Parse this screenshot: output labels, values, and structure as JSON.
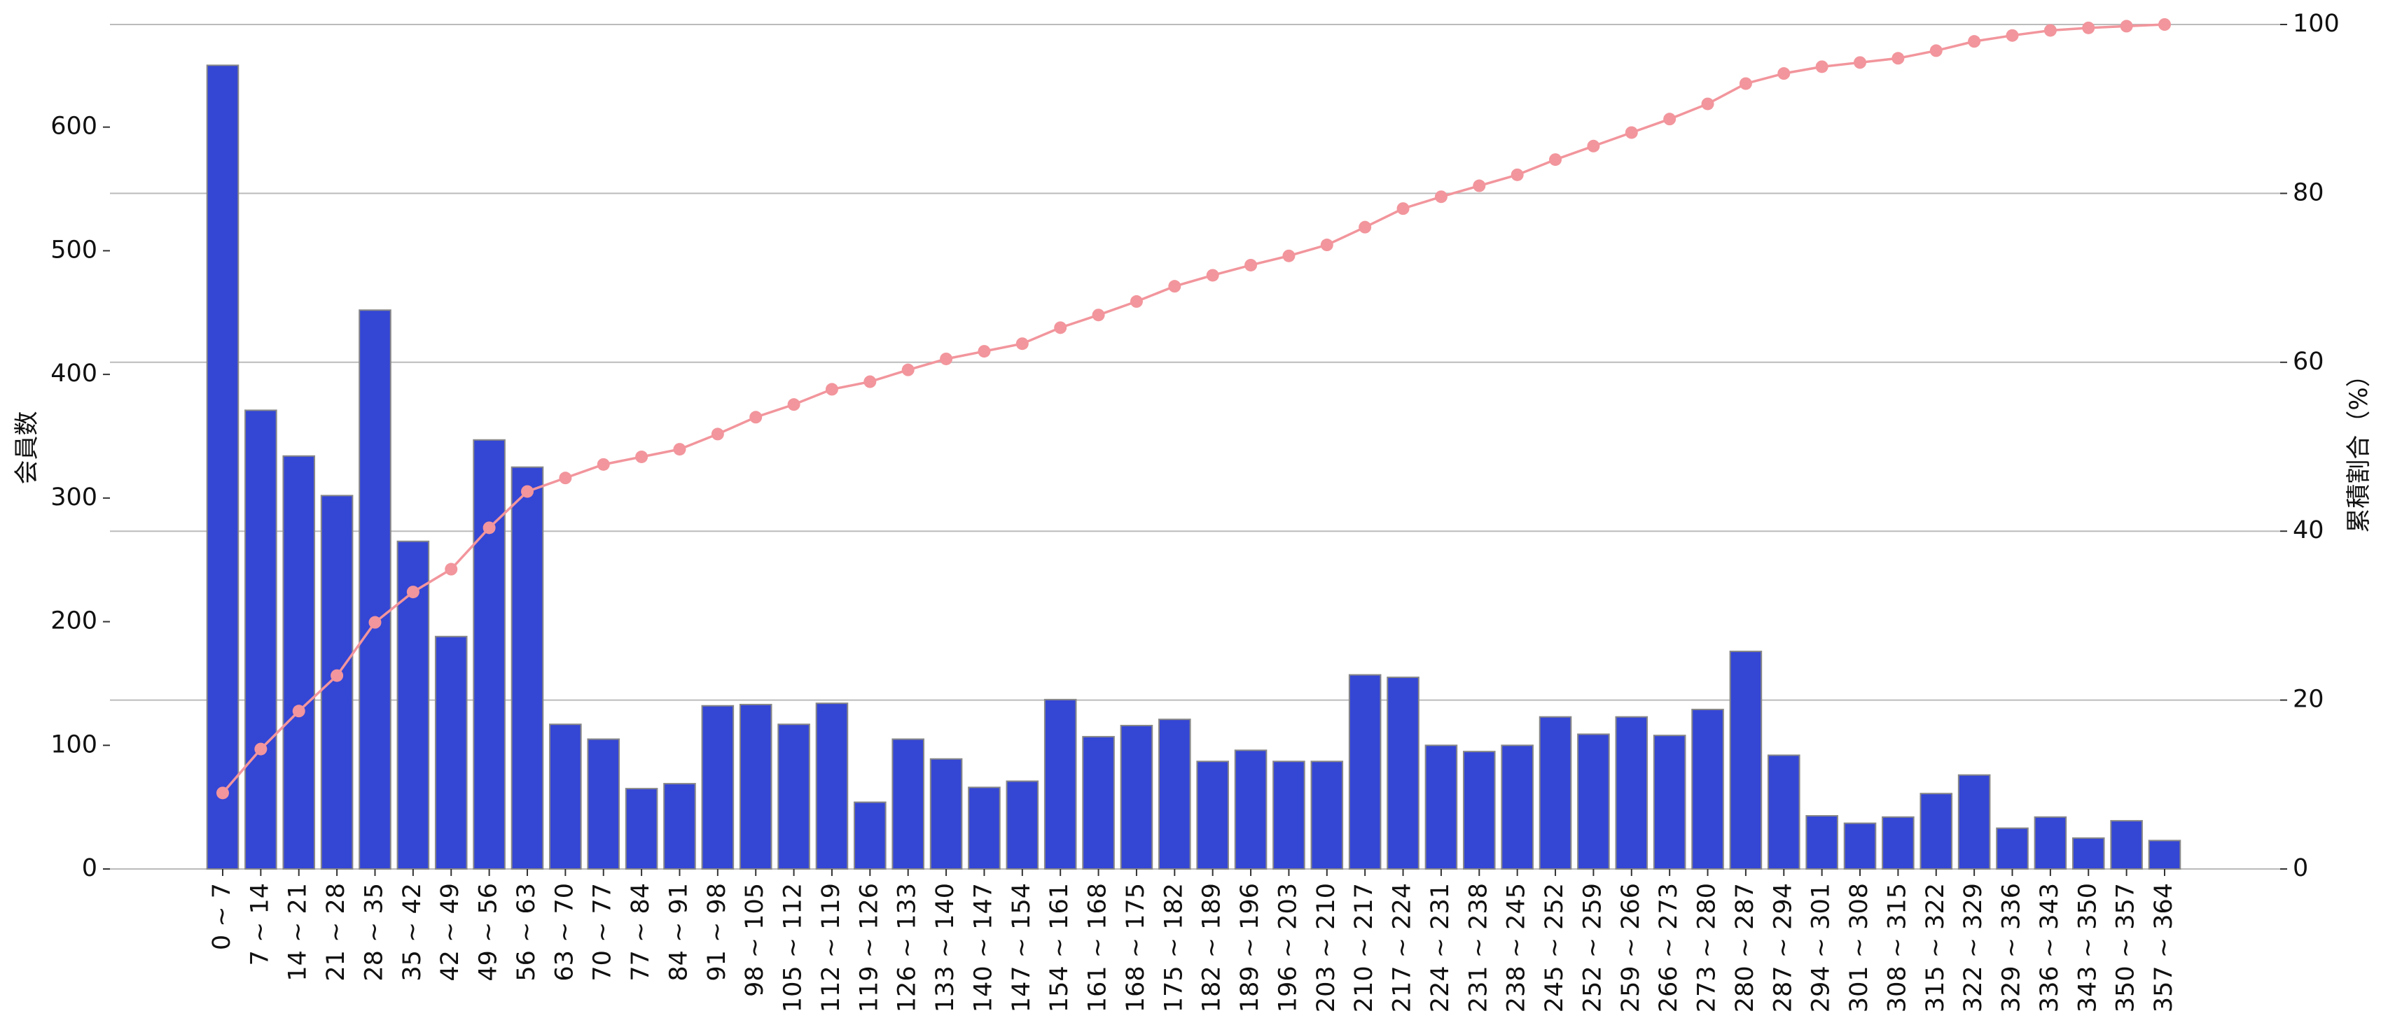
{
  "chart_data": {
    "type": "bar",
    "ylabel": "会員数",
    "y2label": "累積割合（%）",
    "categories": [
      "0 ~ 7",
      "7 ~ 14",
      "14 ~ 21",
      "21 ~ 28",
      "28 ~ 35",
      "35 ~ 42",
      "42 ~ 49",
      "49 ~ 56",
      "56 ~ 63",
      "63 ~ 70",
      "70 ~ 77",
      "77 ~ 84",
      "84 ~ 91",
      "91 ~ 98",
      "98 ~ 105",
      "105 ~ 112",
      "112 ~ 119",
      "119 ~ 126",
      "126 ~ 133",
      "133 ~ 140",
      "140 ~ 147",
      "147 ~ 154",
      "154 ~ 161",
      "161 ~ 168",
      "168 ~ 175",
      "175 ~ 182",
      "182 ~ 189",
      "189 ~ 196",
      "196 ~ 203",
      "203 ~ 210",
      "210 ~ 217",
      "217 ~ 224",
      "224 ~ 231",
      "231 ~ 238",
      "238 ~ 245",
      "245 ~ 252",
      "252 ~ 259",
      "259 ~ 266",
      "266 ~ 273",
      "273 ~ 280",
      "280 ~ 287",
      "287 ~ 294",
      "294 ~ 301",
      "301 ~ 308",
      "308 ~ 315",
      "315 ~ 322",
      "322 ~ 329",
      "329 ~ 336",
      "336 ~ 343",
      "343 ~ 350",
      "350 ~ 357",
      "357 ~ 364"
    ],
    "series": [
      {
        "type": "bar",
        "color": "#3446d4",
        "values": [
          650,
          371,
          334,
          302,
          452,
          265,
          188,
          347,
          325,
          117,
          105,
          65,
          69,
          132,
          133,
          117,
          134,
          54,
          105,
          89,
          66,
          71,
          137,
          107,
          116,
          121,
          87,
          96,
          87,
          87,
          157,
          155,
          100,
          95,
          100,
          123,
          109,
          123,
          108,
          129,
          176,
          92,
          43,
          37,
          42,
          61,
          76,
          33,
          42,
          25,
          39,
          23
        ]
      },
      {
        "type": "line",
        "axis": "y2",
        "color": "#f2959c",
        "values": [
          9.0,
          14.2,
          18.7,
          22.9,
          29.2,
          32.8,
          35.5,
          40.4,
          44.7,
          46.3,
          47.9,
          48.8,
          49.7,
          51.5,
          53.5,
          55.0,
          56.8,
          57.7,
          59.1,
          60.4,
          61.3,
          62.2,
          64.1,
          65.6,
          67.2,
          69.0,
          70.3,
          71.5,
          72.6,
          73.9,
          76.0,
          78.2,
          79.6,
          80.9,
          82.2,
          84.0,
          85.6,
          87.2,
          88.8,
          90.6,
          93.0,
          94.2,
          95.0,
          95.5,
          96.0,
          96.9,
          98.0,
          98.7,
          99.3,
          99.6,
          99.8,
          100
        ]
      }
    ],
    "ylim": [
      0,
      683
    ],
    "yticks": [
      0,
      100,
      200,
      300,
      400,
      500,
      600
    ],
    "y2lim": [
      0,
      100
    ],
    "y2ticks": [
      0,
      20,
      40,
      60,
      80,
      100
    ],
    "grid": "y2"
  }
}
